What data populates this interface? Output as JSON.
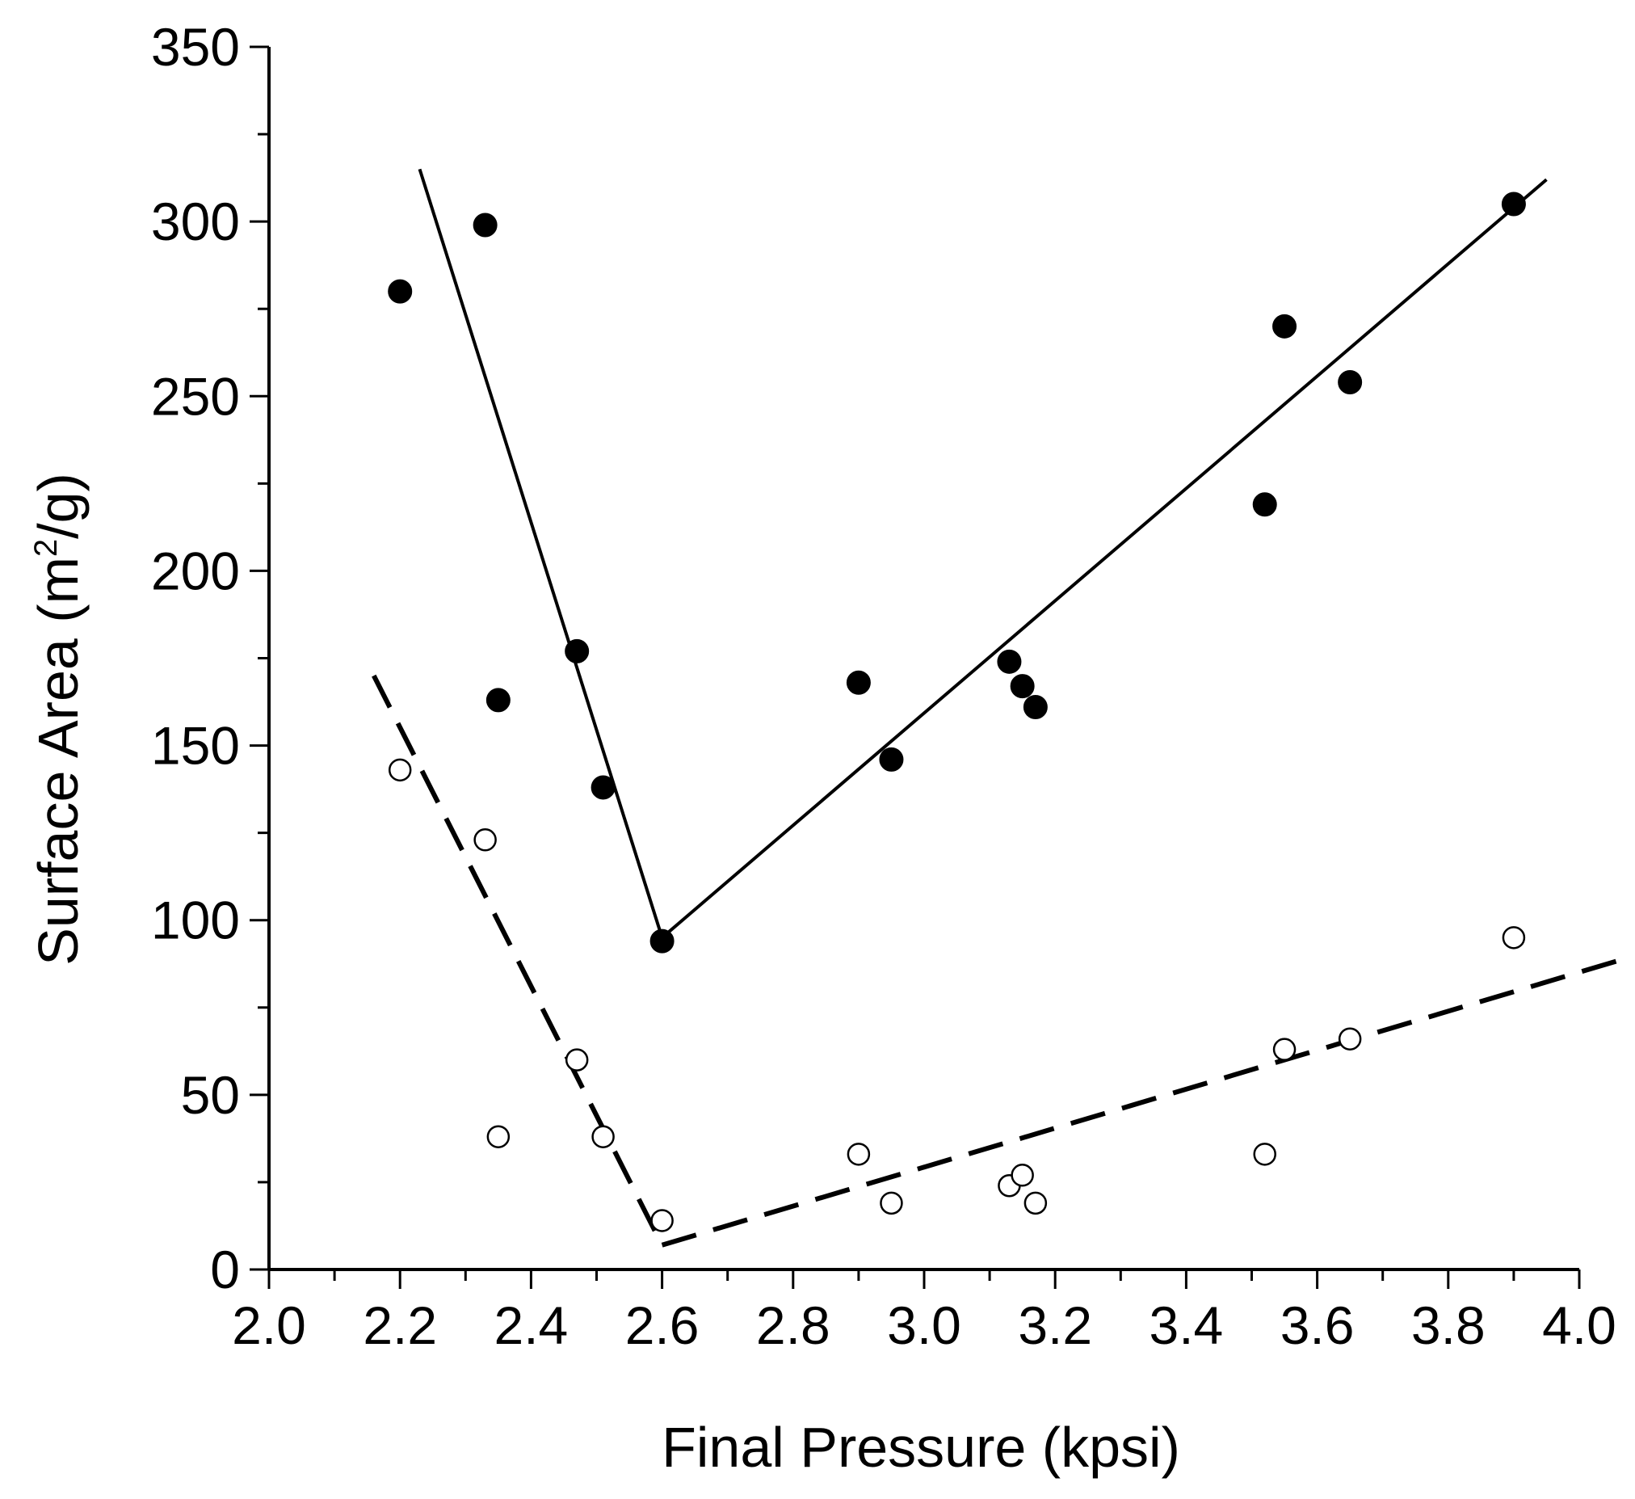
{
  "chart_data": {
    "type": "scatter",
    "xlabel": "Final Pressure (kpsi)",
    "ylabel": {
      "prefix": "Surface Area (m",
      "superscript": "2",
      "suffix": "/g)"
    },
    "xlim": [
      2.0,
      4.0
    ],
    "ylim": [
      0,
      350
    ],
    "x_ticks": [
      "2.0",
      "2.2",
      "2.4",
      "2.6",
      "2.8",
      "3.0",
      "3.2",
      "3.4",
      "3.6",
      "3.8",
      "4.0"
    ],
    "y_ticks": [
      "0",
      "50",
      "100",
      "150",
      "200",
      "250",
      "300",
      "350"
    ],
    "x_minor_step": 0.1,
    "y_minor_step": 25,
    "grid": false,
    "series": [
      {
        "name": "filled",
        "marker": "filled-circle",
        "points": [
          [
            2.2,
            280
          ],
          [
            2.33,
            299
          ],
          [
            2.35,
            163
          ],
          [
            2.47,
            177
          ],
          [
            2.51,
            138
          ],
          [
            2.6,
            94
          ],
          [
            2.9,
            168
          ],
          [
            2.95,
            146
          ],
          [
            3.13,
            174
          ],
          [
            3.15,
            167
          ],
          [
            3.17,
            161
          ],
          [
            3.52,
            219
          ],
          [
            3.55,
            270
          ],
          [
            3.65,
            254
          ],
          [
            3.9,
            305
          ]
        ]
      },
      {
        "name": "open",
        "marker": "open-circle",
        "points": [
          [
            2.2,
            143
          ],
          [
            2.33,
            123
          ],
          [
            2.35,
            38
          ],
          [
            2.47,
            60
          ],
          [
            2.51,
            38
          ],
          [
            2.6,
            14
          ],
          [
            2.9,
            33
          ],
          [
            2.95,
            19
          ],
          [
            3.13,
            24
          ],
          [
            3.15,
            27
          ],
          [
            3.17,
            19
          ],
          [
            3.52,
            33
          ],
          [
            3.55,
            63
          ],
          [
            3.65,
            66
          ],
          [
            3.9,
            95
          ]
        ]
      }
    ],
    "fit_lines": [
      {
        "name": "filled-fit-left",
        "style": "solid",
        "points": [
          [
            2.23,
            315
          ],
          [
            2.6,
            95
          ]
        ]
      },
      {
        "name": "filled-fit-right",
        "style": "solid",
        "points": [
          [
            2.6,
            95
          ],
          [
            3.95,
            312
          ]
        ]
      },
      {
        "name": "open-fit-left",
        "style": "dashed",
        "points": [
          [
            2.16,
            170
          ],
          [
            2.6,
            7
          ]
        ]
      },
      {
        "name": "open-fit-right",
        "style": "dashed",
        "points": [
          [
            2.6,
            7
          ],
          [
            4.07,
            89
          ]
        ]
      }
    ]
  }
}
